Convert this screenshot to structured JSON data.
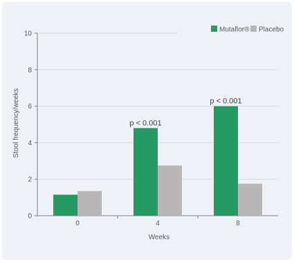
{
  "chart_data": {
    "type": "bar",
    "categories": [
      "0",
      "4",
      "8"
    ],
    "series": [
      {
        "name": "Mutaflor®",
        "values": [
          1.15,
          4.8,
          6.0
        ]
      },
      {
        "name": "Placebo",
        "values": [
          1.35,
          2.75,
          1.75
        ]
      }
    ],
    "title": "",
    "xlabel": "Weeks",
    "ylabel": "Stool frequency/weeks",
    "ylim": [
      0,
      10
    ],
    "yticks": [
      0,
      2,
      4,
      6,
      8,
      10
    ],
    "grid": true,
    "legend_position": "top-right",
    "annotations": [
      {
        "category": "4",
        "text": "p < 0.001"
      },
      {
        "category": "8",
        "text": "p < 0.001"
      }
    ],
    "colors": {
      "Mutaflor®": "#249b63",
      "Placebo": "#b8b6b6"
    }
  }
}
